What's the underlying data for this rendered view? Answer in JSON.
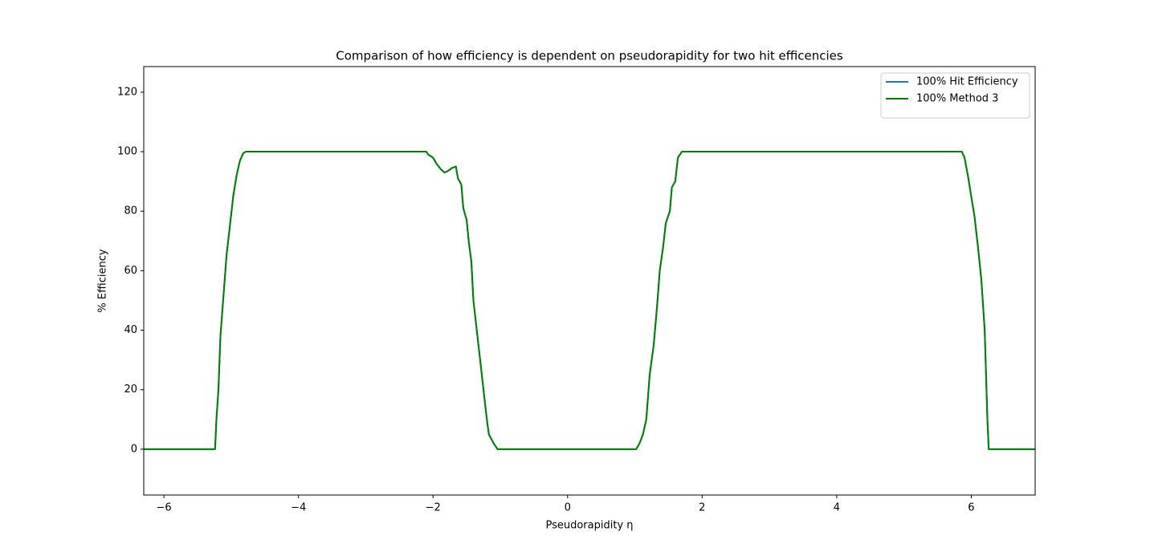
{
  "chart_data": {
    "type": "line",
    "title": "Comparison of how efficiency is dependent on pseudorapidity for two hit efficencies",
    "xlabel": "Pseudorapidity η",
    "ylabel": "% Efficiency",
    "x": [
      -6.3,
      -5.24,
      -5.22,
      -5.19,
      -5.16,
      -5.12,
      -5.07,
      -5.02,
      -4.97,
      -4.92,
      -4.87,
      -4.82,
      -4.78,
      -2.1,
      -2.07,
      -2.0,
      -1.95,
      -1.88,
      -1.83,
      -1.78,
      -1.72,
      -1.66,
      -1.63,
      -1.58,
      -1.55,
      -1.5,
      -1.47,
      -1.43,
      -1.4,
      -1.35,
      -1.3,
      -1.25,
      -1.2,
      -1.17,
      -1.1,
      -1.04,
      1.02,
      1.07,
      1.12,
      1.17,
      1.22,
      1.28,
      1.33,
      1.37,
      1.42,
      1.46,
      1.52,
      1.55,
      1.6,
      1.64,
      1.7,
      5.86,
      5.9,
      5.95,
      6.0,
      6.05,
      6.1,
      6.15,
      6.2,
      6.24,
      6.26,
      6.95
    ],
    "series": [
      {
        "name": "100% Hit Efficiency",
        "color": "#1f77b4",
        "values": [
          0,
          0,
          10,
          20,
          38,
          50,
          65,
          75,
          85,
          92,
          97,
          99.5,
          100,
          100,
          99,
          98,
          96,
          94,
          93,
          93.5,
          94.5,
          95,
          91,
          89,
          81,
          77,
          70,
          63,
          50,
          40,
          30,
          20,
          10,
          5,
          2,
          0,
          0,
          2,
          5,
          10,
          25,
          35,
          48,
          60,
          68,
          76,
          80,
          88,
          90,
          98,
          100,
          100,
          98,
          92,
          85,
          78,
          68,
          57,
          40,
          10,
          0,
          0
        ]
      },
      {
        "name": "100% Method 3",
        "color": "#008000",
        "values": [
          0,
          0,
          10,
          20,
          38,
          50,
          65,
          75,
          85,
          92,
          97,
          99.5,
          100,
          100,
          99,
          98,
          96,
          94,
          93,
          93.5,
          94.5,
          95,
          91,
          89,
          81,
          77,
          70,
          63,
          50,
          40,
          30,
          20,
          10,
          5,
          2,
          0,
          0,
          2,
          5,
          10,
          25,
          35,
          48,
          60,
          68,
          76,
          80,
          88,
          90,
          98,
          100,
          100,
          98,
          92,
          85,
          78,
          68,
          57,
          40,
          10,
          0,
          0
        ]
      }
    ],
    "xlim": [
      -6.3,
      6.95
    ],
    "ylim": [
      -15.4,
      128.6
    ],
    "xticks": [
      {
        "value": -6,
        "label": "−6"
      },
      {
        "value": -4,
        "label": "−4"
      },
      {
        "value": -2,
        "label": "−2"
      },
      0,
      2,
      4,
      6
    ],
    "yticks": [
      0,
      20,
      40,
      60,
      80,
      100,
      120
    ],
    "legend": "upper right",
    "grid": false
  }
}
